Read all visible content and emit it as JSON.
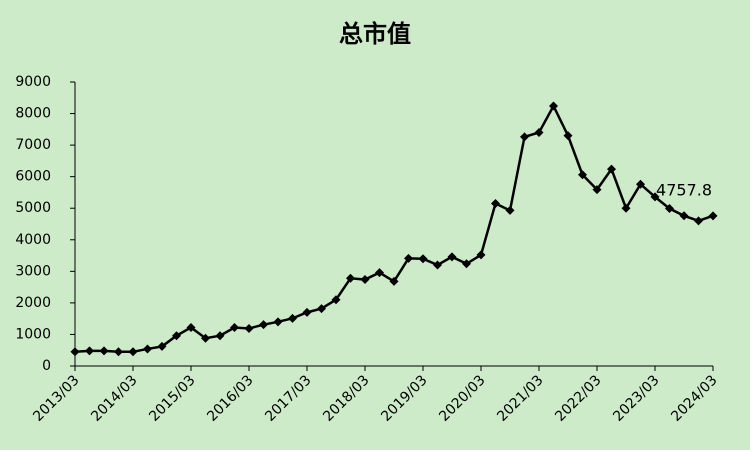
{
  "chart_data": {
    "type": "line",
    "title": "总市值",
    "categories": [
      "2013/03",
      null,
      null,
      null,
      "2014/03",
      null,
      null,
      null,
      "2015/03",
      null,
      null,
      null,
      "2016/03",
      null,
      null,
      null,
      "2017/03",
      null,
      null,
      null,
      "2018/03",
      null,
      null,
      null,
      "2019/03",
      null,
      null,
      null,
      "2020/03",
      null,
      null,
      null,
      "2021/03",
      null,
      null,
      null,
      "2022/03",
      null,
      null,
      null,
      "2023/03",
      null,
      null,
      null,
      "2024/03"
    ],
    "values": [
      450,
      480,
      480,
      450,
      450,
      540,
      620,
      960,
      1220,
      880,
      960,
      1220,
      1190,
      1310,
      1400,
      1510,
      1700,
      1820,
      2100,
      2780,
      2740,
      2960,
      2680,
      3410,
      3400,
      3200,
      3460,
      3240,
      3520,
      5150,
      4930,
      7260,
      7400,
      8240,
      7300,
      6060,
      5590,
      6240,
      5000,
      5760,
      5360,
      4990,
      4760,
      4600,
      4757.8
    ],
    "color": "#000000",
    "ylim": [
      0,
      9000
    ],
    "yticks": [
      0,
      1000,
      2000,
      3000,
      4000,
      5000,
      6000,
      7000,
      8000,
      9000
    ],
    "grid": false
  }
}
